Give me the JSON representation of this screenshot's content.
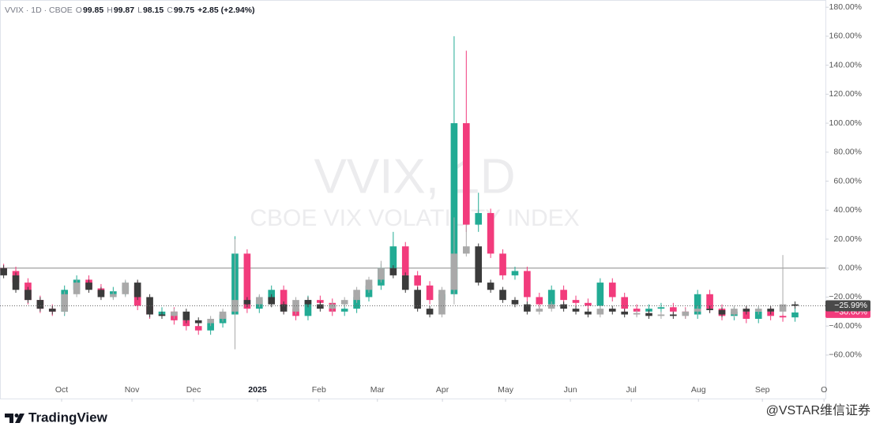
{
  "header": {
    "symbol": "VVIX · 1D · CBOE",
    "ohlc": [
      {
        "label": "O",
        "value": "99.85"
      },
      {
        "label": "H",
        "value": "99.87"
      },
      {
        "label": "L",
        "value": "98.15"
      },
      {
        "label": "C",
        "value": "99.75"
      }
    ],
    "change": "+2.85 (+2.94%)"
  },
  "watermark": {
    "title": "VVIX, 1D",
    "subtitle": "CBOE VIX VOLATILITY INDEX"
  },
  "footer": {
    "brand": "TradingView",
    "credit": "@VSTAR维信证券"
  },
  "chart_data": {
    "type": "candlestick",
    "xlim": [
      -0.3,
      67.5
    ],
    "ylim": [
      -90,
      185
    ],
    "xticks": [
      {
        "value": 4.76,
        "label": "Oct"
      },
      {
        "value": 10.54,
        "label": "Nov"
      },
      {
        "value": 15.6,
        "label": "Dec"
      },
      {
        "value": 20.85,
        "label": "2025"
      },
      {
        "value": 25.9,
        "label": "Feb"
      },
      {
        "value": 30.7,
        "label": "Mar"
      },
      {
        "value": 36.04,
        "label": "Apr"
      },
      {
        "value": 41.23,
        "label": "May"
      },
      {
        "value": 46.55,
        "label": "Jun"
      },
      {
        "value": 51.55,
        "label": "Jul"
      },
      {
        "value": 57.07,
        "label": "Aug"
      },
      {
        "value": 62.32,
        "label": "Sep"
      },
      {
        "value": 67.38,
        "label": "O"
      }
    ],
    "yticks": [
      {
        "value": 180,
        "label": "180.00%"
      },
      {
        "value": 160,
        "label": "160.00%"
      },
      {
        "value": 140,
        "label": "140.00%"
      },
      {
        "value": 120,
        "label": "120.00%"
      },
      {
        "value": 100,
        "label": "100.00%"
      },
      {
        "value": 80,
        "label": "80.00%"
      },
      {
        "value": 60,
        "label": "60.00%"
      },
      {
        "value": 40,
        "label": "40.00%"
      },
      {
        "value": 20,
        "label": "20.00%"
      },
      {
        "value": 0,
        "label": "0.00%"
      },
      {
        "value": -20,
        "label": "−20.00%"
      },
      {
        "value": -40,
        "label": "−40.00%"
      },
      {
        "value": -60,
        "label": "−60.00%"
      }
    ],
    "baseline": 0,
    "series": [
      {
        "up_color": "#22ab94",
        "down_color": "#f23b7c",
        "label_color": "#f23b7c",
        "last_label": "−30.60%",
        "open": [
          0,
          -2,
          -10,
          -22,
          -28,
          -30,
          -15,
          -8,
          -14,
          -18,
          -16,
          -12,
          -26,
          -32,
          -30,
          -36,
          -40,
          -43,
          -38,
          -32,
          10,
          -28,
          -22,
          -15,
          -28,
          -33,
          -22,
          -24,
          -30,
          -28,
          -20,
          -12,
          0,
          15,
          -5,
          -12,
          -22,
          -18,
          100,
          30,
          38,
          10,
          -5,
          -2,
          -20,
          -25,
          -15,
          -22,
          -24,
          -26,
          -10,
          -20,
          -28,
          -30,
          -28,
          -27,
          -30,
          -32,
          -18,
          -28,
          -33,
          -30,
          -35,
          -30,
          -33,
          -34
        ],
        "high": [
          3,
          1,
          -7,
          -19,
          -25,
          -12,
          -5,
          -5,
          -11,
          -13,
          -9,
          -9,
          -23,
          -27,
          -27,
          -33,
          -37,
          -35,
          -29,
          22,
          13,
          -19,
          -12,
          -12,
          -25,
          -19,
          -19,
          -21,
          -25,
          -17,
          -9,
          3,
          25,
          18,
          -2,
          -9,
          -15,
          160,
          150,
          52,
          41,
          13,
          1,
          1,
          -17,
          -12,
          -12,
          -19,
          -21,
          -7,
          -7,
          -17,
          -25,
          -25,
          -24,
          -24,
          -27,
          -15,
          -15,
          -25,
          -27,
          -27,
          -27,
          -27,
          -30,
          -27
        ],
        "low": [
          -5,
          -13,
          -25,
          -31,
          -33,
          -33,
          -18,
          -17,
          -21,
          -21,
          -19,
          -29,
          -35,
          -35,
          -39,
          -43,
          -46,
          -46,
          -41,
          -35,
          -31,
          -31,
          -25,
          -31,
          -36,
          -36,
          -27,
          -33,
          -33,
          -31,
          -23,
          -15,
          -3,
          -8,
          -15,
          -25,
          -25,
          -20,
          25,
          25,
          7,
          -8,
          -8,
          -23,
          -28,
          -28,
          -25,
          -27,
          -29,
          -29,
          -23,
          -31,
          -33,
          -33,
          -31,
          -33,
          -35,
          -35,
          -31,
          -36,
          -36,
          -38,
          -38,
          -36,
          -37,
          -37
        ],
        "close": [
          -2,
          -10,
          -22,
          -28,
          -30,
          -15,
          -8,
          -14,
          -18,
          -16,
          -12,
          -26,
          -32,
          -30,
          -36,
          -40,
          -43,
          -38,
          -32,
          10,
          -28,
          -22,
          -15,
          -28,
          -33,
          -22,
          -24,
          -30,
          -28,
          -20,
          -12,
          0,
          15,
          -5,
          -12,
          -22,
          -18,
          100,
          30,
          38,
          10,
          -5,
          -2,
          -20,
          -25,
          -15,
          -22,
          -24,
          -26,
          -10,
          -20,
          -28,
          -30,
          -28,
          -27,
          -30,
          -32,
          -18,
          -28,
          -33,
          -30,
          -35,
          -30,
          -33,
          -34,
          -30.6
        ]
      },
      {
        "up_color": "#a9a9a9",
        "down_color": "#3b3b3b",
        "label_color": "#4a4a4a",
        "last_label": "−25.99%",
        "open": [
          0,
          -5,
          -15,
          -22,
          -28,
          -30,
          -18,
          -10,
          -15,
          -20,
          -18,
          -10,
          -20,
          -32,
          -33,
          -30,
          -36,
          -38,
          -35,
          -30,
          -22,
          -25,
          -20,
          -25,
          -30,
          -22,
          -25,
          -28,
          -25,
          -22,
          -15,
          -8,
          0,
          -5,
          -15,
          -28,
          -32,
          -15,
          10,
          15,
          -10,
          -15,
          -22,
          -25,
          -30,
          -28,
          -25,
          -28,
          -30,
          -32,
          -28,
          -30,
          -32,
          -31,
          -33,
          -32,
          -33,
          -30,
          -28,
          -29,
          -32,
          -28,
          -30,
          -28,
          -30,
          -25
        ],
        "high": [
          2,
          -3,
          -13,
          -20,
          -26,
          -16,
          -8,
          -8,
          -13,
          -16,
          -8,
          -8,
          -18,
          -30,
          -28,
          -28,
          -34,
          -33,
          -28,
          20,
          -20,
          -18,
          -18,
          -23,
          -20,
          -20,
          -23,
          -23,
          -20,
          -13,
          -6,
          5,
          2,
          -3,
          -13,
          -26,
          -13,
          35,
          30,
          17,
          -8,
          -13,
          -20,
          -23,
          -26,
          -23,
          -23,
          -26,
          -28,
          -26,
          -26,
          -28,
          -29,
          -29,
          -30,
          -30,
          -28,
          -26,
          -26,
          -27,
          -26,
          -26,
          -26,
          -26,
          9,
          -23
        ],
        "low": [
          -7,
          -17,
          -24,
          -30,
          -32,
          -32,
          -20,
          -17,
          -22,
          -22,
          -20,
          -22,
          -34,
          -35,
          -35,
          -38,
          -40,
          -40,
          -37,
          -56,
          -27,
          -27,
          -27,
          -32,
          -32,
          -27,
          -30,
          -30,
          -27,
          -24,
          -17,
          -10,
          -7,
          -17,
          -30,
          -34,
          -34,
          -25,
          8,
          -12,
          -17,
          -24,
          -27,
          -32,
          -32,
          -30,
          -30,
          -32,
          -34,
          -34,
          -32,
          -34,
          -34,
          -35,
          -35,
          -35,
          -35,
          -32,
          -31,
          -34,
          -34,
          -32,
          -32,
          -32,
          -32,
          -28
        ],
        "close": [
          -5,
          -15,
          -22,
          -28,
          -30,
          -18,
          -10,
          -15,
          -20,
          -18,
          -10,
          -20,
          -32,
          -33,
          -30,
          -36,
          -38,
          -35,
          -30,
          -22,
          -25,
          -20,
          -25,
          -30,
          -22,
          -25,
          -28,
          -25,
          -22,
          -15,
          -8,
          0,
          -5,
          -15,
          -28,
          -32,
          -15,
          10,
          15,
          -10,
          -15,
          -22,
          -25,
          -30,
          -28,
          -25,
          -28,
          -30,
          -32,
          -28,
          -30,
          -32,
          -31,
          -33,
          -32,
          -33,
          -30,
          -28,
          -29,
          -32,
          -28,
          -30,
          -28,
          -30,
          -25,
          -25.99
        ]
      }
    ]
  }
}
